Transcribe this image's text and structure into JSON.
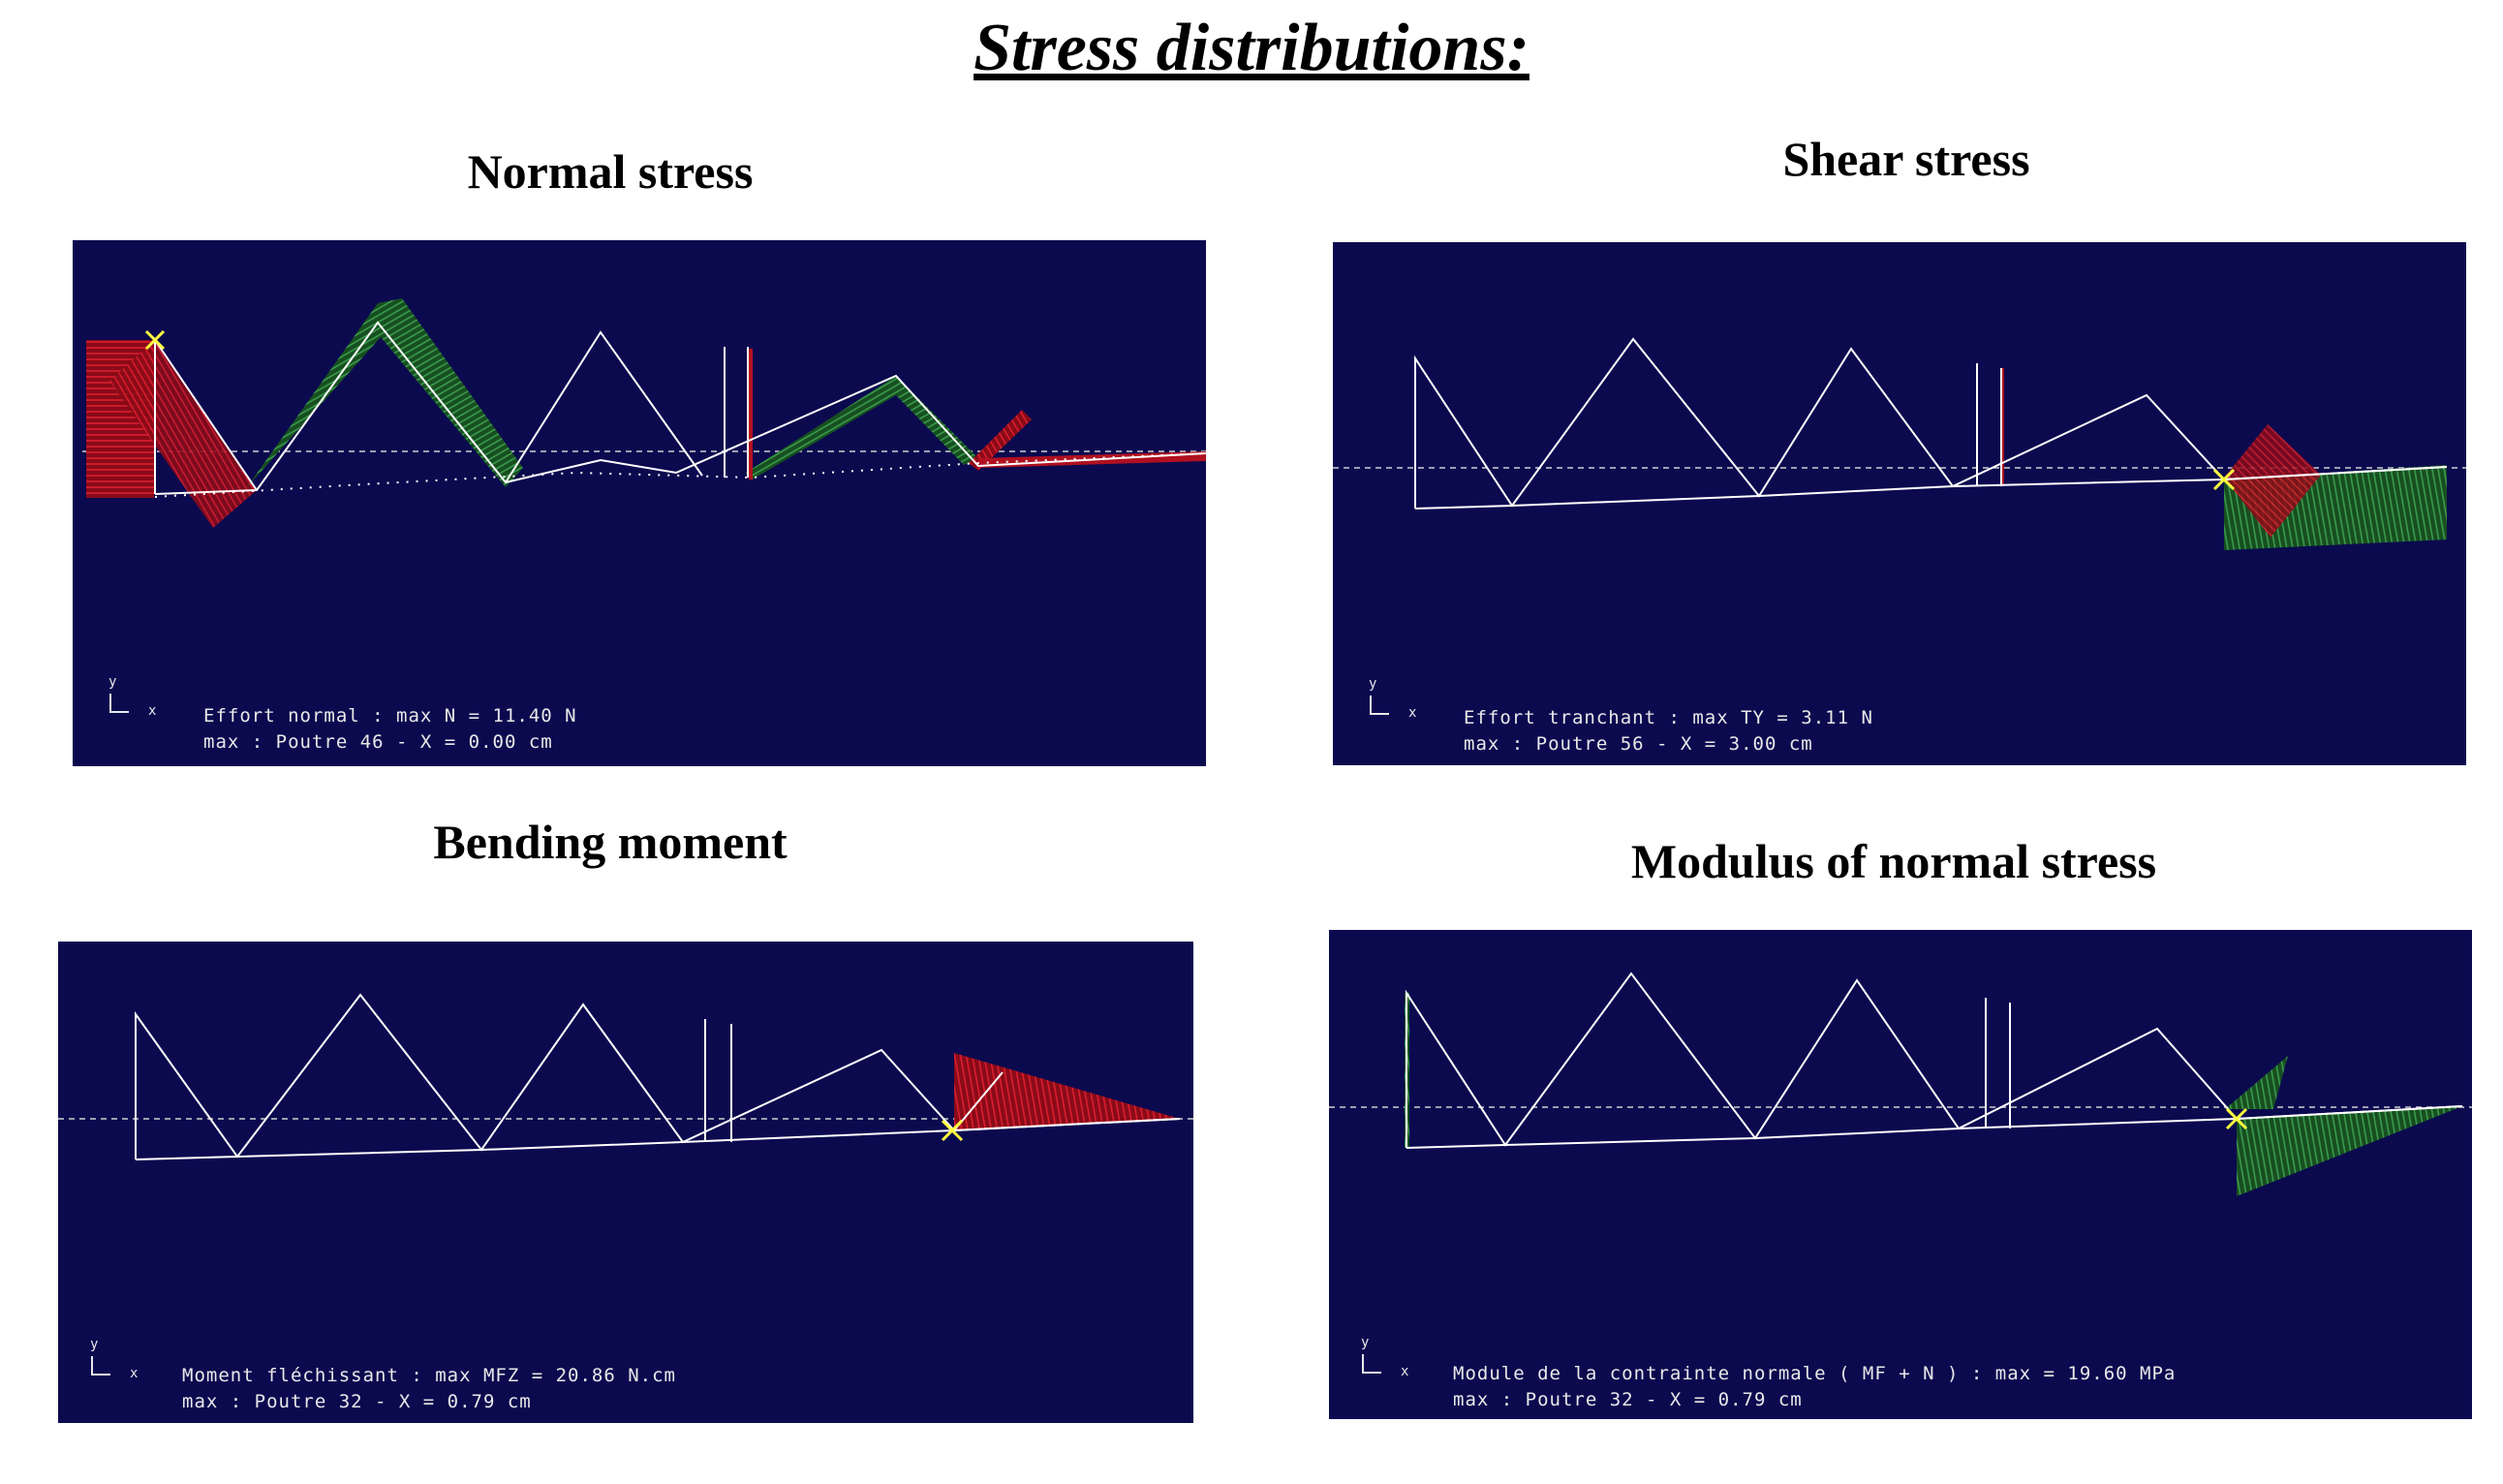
{
  "page_title": "Stress distributions:",
  "panels": [
    {
      "title": "Normal stress",
      "line1": "Effort normal : max N = 11.40 N",
      "line2": "max : Poutre 46 - X = 0.00 cm"
    },
    {
      "title": "Shear stress",
      "line1": "Effort tranchant : max TY = 3.11 N",
      "line2": "max : Poutre 56 - X = 3.00 cm"
    },
    {
      "title": "Bending moment",
      "line1": "Moment fléchissant : max MFZ = 20.86 N.cm",
      "line2": "max : Poutre 32 - X = 0.79 cm"
    },
    {
      "title": "Modulus of normal stress",
      "line1": "Module de la contrainte normale ( MF + N ) : max = 19.60 MPa",
      "line2": "max : Poutre 32 - X = 0.79 cm"
    }
  ],
  "axis": {
    "y": "y",
    "x": "x"
  },
  "colors": {
    "screen_bg": "#0b0a4f",
    "structure": "#ffffff",
    "negative_fill": "#b01020",
    "positive_fill": "#1f7a2e",
    "marker": "#ffff40",
    "dashed_axis": "#cfcfcf"
  }
}
